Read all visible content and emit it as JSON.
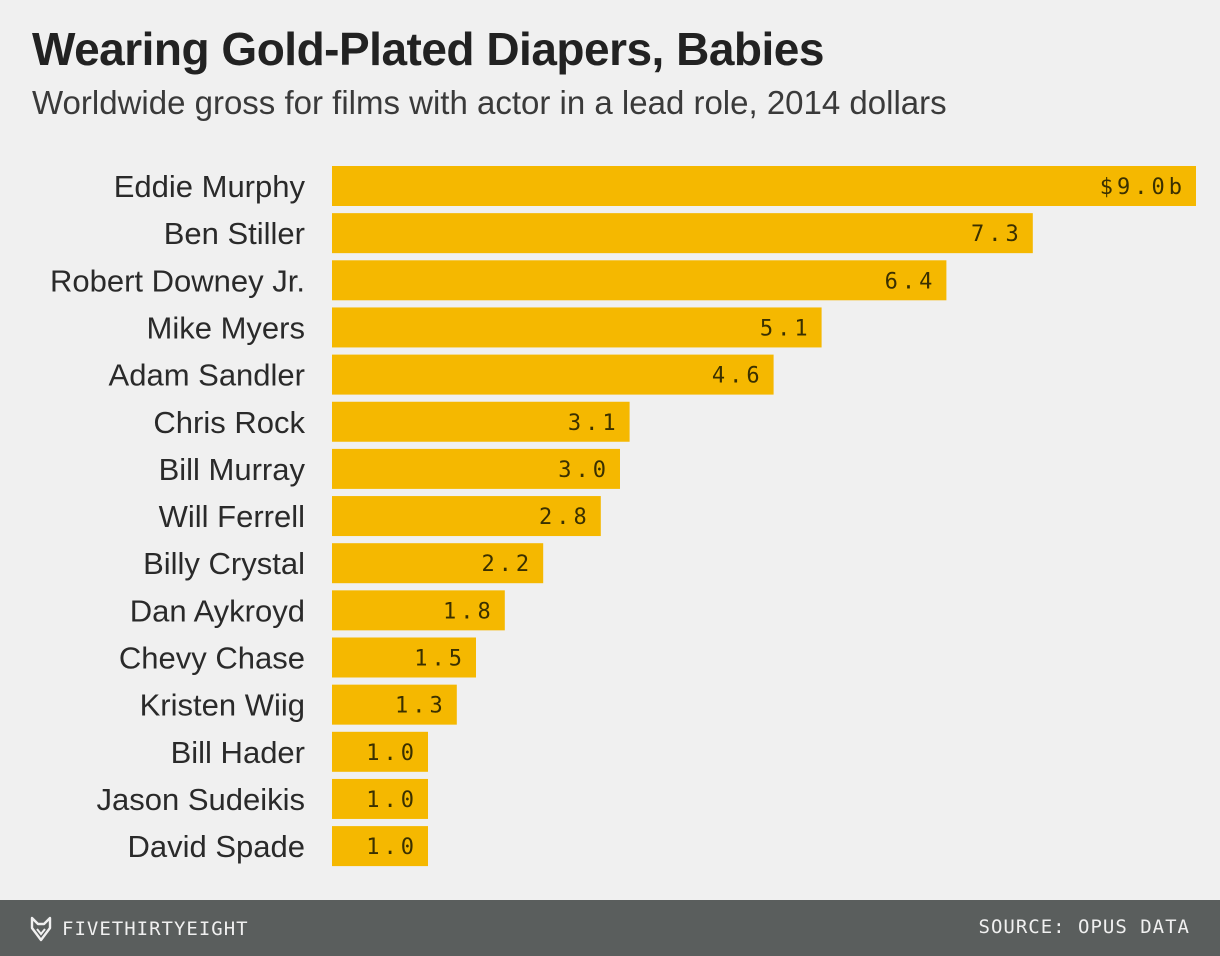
{
  "header": {
    "title": "Wearing Gold-Plated Diapers, Babies",
    "subtitle": "Worldwide gross for films with actor in a lead role, 2014 dollars"
  },
  "chart_data": {
    "type": "bar",
    "orientation": "horizontal",
    "title": "Wearing Gold-Plated Diapers, Babies",
    "subtitle": "Worldwide gross for films with actor in a lead role, 2014 dollars",
    "xlabel": "",
    "ylabel": "",
    "unit": "billions of 2014 dollars",
    "xlim": [
      0,
      9.0
    ],
    "categories": [
      "Eddie Murphy",
      "Ben Stiller",
      "Robert Downey Jr.",
      "Mike Myers",
      "Adam Sandler",
      "Chris Rock",
      "Bill Murray",
      "Will Ferrell",
      "Billy Crystal",
      "Dan Aykroyd",
      "Chevy Chase",
      "Kristen Wiig",
      "Bill Hader",
      "Jason Sudeikis",
      "David Spade"
    ],
    "values": [
      9.0,
      7.3,
      6.4,
      5.1,
      4.6,
      3.1,
      3.0,
      2.8,
      2.2,
      1.8,
      1.5,
      1.3,
      1.0,
      1.0,
      1.0
    ],
    "data_labels": [
      "$9.0b",
      "7.3",
      "6.4",
      "5.1",
      "4.6",
      "3.1",
      "3.0",
      "2.8",
      "2.2",
      "1.8",
      "1.5",
      "1.3",
      "1.0",
      "1.0",
      "1.0"
    ],
    "bar_color": "#f5b800",
    "grid": false,
    "legend": "none"
  },
  "footer": {
    "brand": "FIVETHIRTYEIGHT",
    "source": "SOURCE: OPUS DATA",
    "logo_icon": "fox-icon"
  },
  "colors": {
    "background": "#f0f0f0",
    "bar": "#f5b800",
    "footer": "#5a5e5d",
    "text": "#222222"
  }
}
